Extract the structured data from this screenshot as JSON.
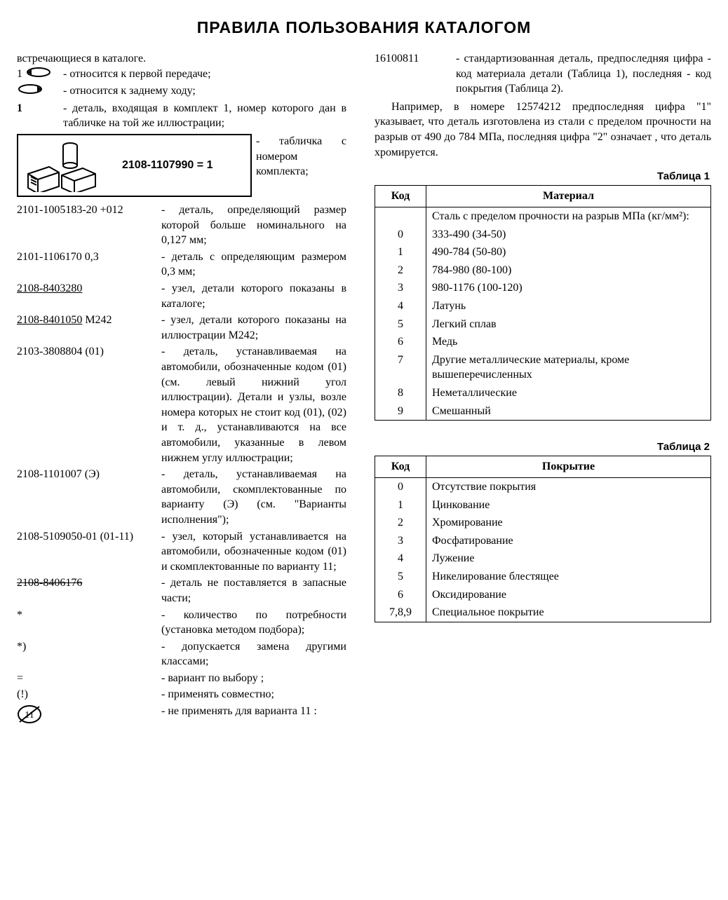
{
  "title": "ПРАВИЛА ПОЛЬЗОВАНИЯ КАТАЛОГОМ",
  "intro_line": "встречающиеся в каталоге.",
  "left_entries_top": [
    {
      "term_prefix": "1 ",
      "term_svg": "gear-fwd",
      "desc": "- относится к первой передаче;"
    },
    {
      "term_prefix": "",
      "term_svg": "gear-rev",
      "desc": "- относится к заднему ходу;"
    },
    {
      "term_prefix": "1",
      "term_svg": "",
      "desc": "- деталь, входящая в комплект 1, номер которого дан в табличке на той же иллюстрации;"
    }
  ],
  "kit_box": {
    "number": "2108-1107990 = 1",
    "desc": "- табличка с номером комплекта;"
  },
  "left_entries": [
    {
      "term": "2101-1005183-20  +012",
      "desc": "- деталь, определяющий размер которой больше номинального на 0,127 мм;"
    },
    {
      "term": "2101-1106170 0,3",
      "desc": "- деталь с определяющим размером 0,3 мм;"
    },
    {
      "term": "2108-8403280",
      "term_class": "underline",
      "desc": "- узел, детали которого показаны в каталоге;"
    },
    {
      "term": "2108-8401050 М242",
      "term_underline_part": "2108-8401050",
      "term_rest": " М242",
      "desc": "- узел, детали которого показаны на иллюстрации М242;"
    },
    {
      "term": "2103-3808804 (01)",
      "desc": "- деталь, устанавливаемая на автомобили, обозначенные кодом (01) (см. левый нижний угол иллюстрации). Детали и узлы, возле номера которых не стоит код (01), (02) и т. д., устанавливаются на все автомобили, указанные в левом нижнем углу иллюстрации;"
    },
    {
      "term": "2108-1101007 (Э)",
      "desc": "- деталь, устанавливаемая на автомобили, скомплектованные по варианту (Э) (см. \"Варианты исполнения\");"
    },
    {
      "term": "2108-5109050-01 (01-11)",
      "desc": "- узел, который устанавливается на автомобили, обозначенные кодом (01) и скомплектованные по варианту 11;"
    },
    {
      "term": "2108-8406176",
      "term_class": "strike",
      "desc": "- деталь не поставляется в запасные части;"
    },
    {
      "term": "*",
      "desc": "- количество по потребности (установка методом подбора);"
    },
    {
      "term": "*)",
      "desc": "- допускается замена другими классами;"
    },
    {
      "term": "=",
      "desc": "- вариант по выбору ;"
    },
    {
      "term": "(!)",
      "desc": "- применять совместно;"
    },
    {
      "term_svg": "crossed-11",
      "desc": "- не применять для варианта 11 :"
    }
  ],
  "right_top_entry": {
    "term": "16100811",
    "desc": "- стандартизованная деталь, предпоследняя цифра - код материала детали (Таблица 1), последняя - код покрытия (Таблица 2)."
  },
  "right_paragraph": "Например, в номере 12574212 предпоследняя цифра \"1\" указывает, что деталь изготовлена из стали с пределом прочности на разрыв от 490 до 784 МПа, последняя цифра \"2\" означает , что деталь хромируется.",
  "table1": {
    "caption": "Таблица 1",
    "headers": [
      "Код",
      "Материал"
    ],
    "pre_row": "Сталь с пределом прочности на разрыв МПа (кг/мм²):",
    "rows": [
      [
        "0",
        "333-490 (34-50)"
      ],
      [
        "1",
        "490-784 (50-80)"
      ],
      [
        "2",
        "784-980 (80-100)"
      ],
      [
        "3",
        "980-1176 (100-120)"
      ],
      [
        "4",
        "Латунь"
      ],
      [
        "5",
        "Легкий сплав"
      ],
      [
        "6",
        "Медь"
      ],
      [
        "7",
        "Другие металлические материалы, кроме вышеперечисленных"
      ],
      [
        "8",
        "Неметаллические"
      ],
      [
        "9",
        "Смешанный"
      ]
    ]
  },
  "table2": {
    "caption": "Таблица 2",
    "headers": [
      "Код",
      "Покрытие"
    ],
    "rows": [
      [
        "0",
        "Отсутствие покрытия"
      ],
      [
        "1",
        "Цинкование"
      ],
      [
        "2",
        "Хромирование"
      ],
      [
        "3",
        "Фосфатирование"
      ],
      [
        "4",
        "Лужение"
      ],
      [
        "5",
        "Никелирование блестящее"
      ],
      [
        "6",
        "Оксидирование"
      ],
      [
        "7,8,9",
        "Специальное покрытие"
      ]
    ]
  }
}
